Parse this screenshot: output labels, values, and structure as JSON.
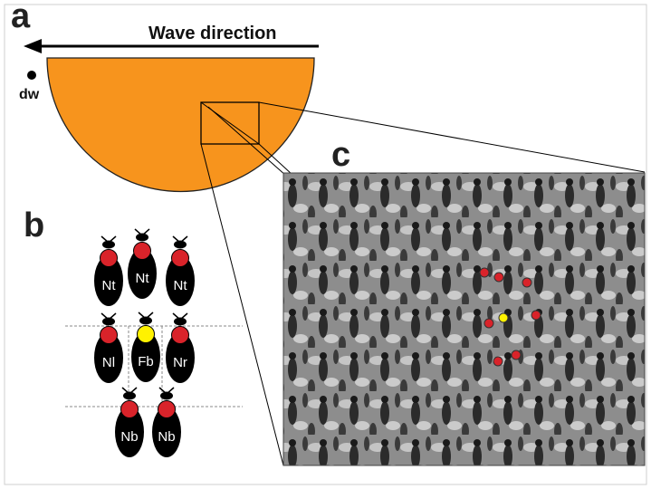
{
  "panel_a": {
    "letter": "a",
    "arrow_label": "Wave direction",
    "marker_label": "dw",
    "comb_color": "#f7941d"
  },
  "panel_b": {
    "letter": "b",
    "bees": [
      {
        "label": "Nt",
        "thorax": "red"
      },
      {
        "label": "Nt",
        "thorax": "red"
      },
      {
        "label": "Nt",
        "thorax": "red"
      },
      {
        "label": "Nl",
        "thorax": "red"
      },
      {
        "label": "Fb",
        "thorax": "yellow"
      },
      {
        "label": "Nr",
        "thorax": "red"
      },
      {
        "label": "Nb",
        "thorax": "red"
      },
      {
        "label": "Nb",
        "thorax": "red"
      }
    ],
    "colors": {
      "red": "#d9232a",
      "yellow": "#fff200",
      "body": "#000000"
    }
  },
  "panel_c": {
    "letter": "c",
    "marked_bees": {
      "red": 7,
      "yellow": 1
    }
  }
}
